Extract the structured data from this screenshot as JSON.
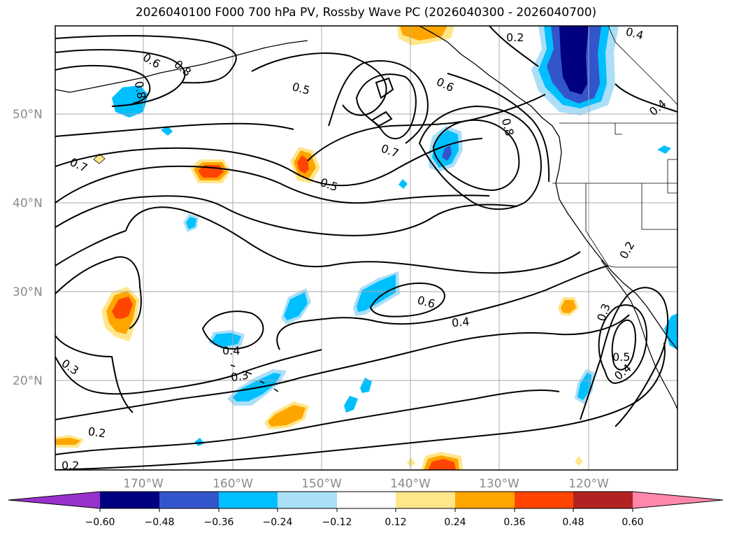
{
  "title": "2026040100 F000 700 hPa PV, Rossby Wave PC (2026040300 - 2026040700)",
  "map": {
    "lat_ticks": [
      "50°N",
      "40°N",
      "30°N",
      "20°N"
    ],
    "lon_ticks": [
      "170°W",
      "160°W",
      "150°W",
      "140°W",
      "130°W",
      "120°W"
    ],
    "contour_labels": [
      "0.6",
      "0.8",
      "0.8",
      "0.5",
      "0.2",
      "0.4",
      "0.4",
      "0.6",
      "0.8",
      "0.7",
      "0.7",
      "0.5",
      "0.6",
      "0.4",
      "0.4",
      "0.3",
      "0.3",
      "0.5",
      "0.4",
      "0.3",
      "0.2",
      "0.2",
      "0.2"
    ]
  },
  "colorbar": {
    "tick_labels": [
      "−0.60",
      "−0.48",
      "−0.36",
      "−0.24",
      "−0.12",
      "0.12",
      "0.24",
      "0.36",
      "0.48",
      "0.60"
    ],
    "colors": {
      "under": "#9932cc",
      "bins": [
        "#000080",
        "#3355cc",
        "#00bfff",
        "#aadff7",
        "#ffffff",
        "#ffe68a",
        "#ffa500",
        "#ff4500",
        "#b22222"
      ],
      "over": "#ff88aa"
    }
  },
  "colors": {
    "neg_dark": "#000080",
    "neg_mid": "#3355cc",
    "neg": "#00bfff",
    "neg_light": "#aadff7",
    "pos_light": "#ffe68a",
    "pos": "#ffa500",
    "pos_mid": "#ff4500"
  }
}
